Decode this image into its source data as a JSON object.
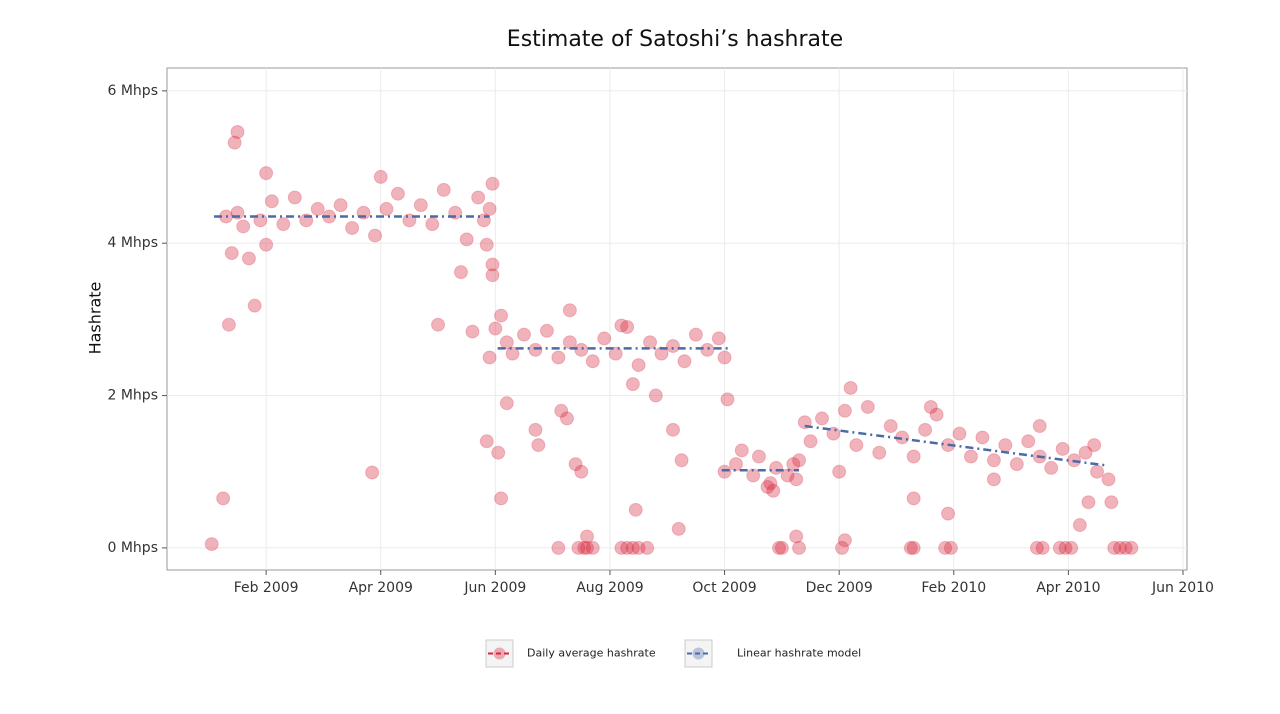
{
  "chart_data": {
    "type": "scatter",
    "title": "Estimate of Satoshi’s hashrate",
    "y_label": "Hashrate",
    "grid": true,
    "xlim": [
      -0.73,
      17.07
    ],
    "ylim": [
      -0.29,
      6.3
    ],
    "xticks": [
      {
        "value": 1,
        "label": "Feb 2009"
      },
      {
        "value": 3,
        "label": "Apr 2009"
      },
      {
        "value": 5,
        "label": "Jun 2009"
      },
      {
        "value": 7,
        "label": "Aug 2009"
      },
      {
        "value": 9,
        "label": "Oct 2009"
      },
      {
        "value": 11,
        "label": "Dec 2009"
      },
      {
        "value": 13,
        "label": "Feb 2010"
      },
      {
        "value": 15,
        "label": "Apr 2010"
      },
      {
        "value": 17,
        "label": "Jun 2010"
      }
    ],
    "yticks": [
      {
        "value": 0,
        "label": "0 Mhps"
      },
      {
        "value": 2,
        "label": "2 Mhps"
      },
      {
        "value": 4,
        "label": "4 Mhps"
      },
      {
        "value": 6,
        "label": "6 Mhps"
      }
    ],
    "series": [
      {
        "name": "Daily average hashrate",
        "type": "scatter",
        "color": "#d7263d",
        "x": [
          0.3,
          0.5,
          0.6,
          0.9,
          1.0,
          1.1,
          1.3,
          1.5,
          1.7,
          1.9,
          2.1,
          2.3,
          2.5,
          2.7,
          2.9,
          3.1,
          3.3,
          3.5,
          3.7,
          3.9,
          4.1,
          4.3,
          4.5,
          4.7,
          4.9,
          1.0,
          3.0,
          4.8,
          4.95,
          4.85,
          4.95,
          0.05,
          0.25,
          0.35,
          0.4,
          0.45,
          0.5,
          0.7,
          0.8,
          2.85,
          4.0,
          4.4,
          4.6,
          4.9,
          5.1,
          5.2,
          5.3,
          5.5,
          5.7,
          5.9,
          6.1,
          6.3,
          6.5,
          6.7,
          6.9,
          7.1,
          7.3,
          7.5,
          7.7,
          7.9,
          8.1,
          8.3,
          8.5,
          8.7,
          8.9,
          9.0,
          5.0,
          5.05,
          5.1,
          5.2,
          5.7,
          5.75,
          6.15,
          6.25,
          6.4,
          6.5,
          6.6,
          7.45,
          7.4,
          7.8,
          8.1,
          8.25,
          8.2,
          9.05,
          4.85,
          4.95,
          6.3,
          7.2,
          6.1,
          6.45,
          6.55,
          6.6,
          6.7,
          7.2,
          7.3,
          7.4,
          7.5,
          7.65,
          9.0,
          9.2,
          9.3,
          9.5,
          9.6,
          9.8,
          9.9,
          10.1,
          10.2,
          10.25,
          9.75,
          9.85,
          9.95,
          10.0,
          10.25,
          10.3,
          10.4,
          10.5,
          10.7,
          10.9,
          11.1,
          11.3,
          11.5,
          11.7,
          11.9,
          12.1,
          12.3,
          12.5,
          12.7,
          12.9,
          13.1,
          13.3,
          13.5,
          13.7,
          13.9,
          14.1,
          14.3,
          14.5,
          14.7,
          14.9,
          15.1,
          15.3,
          15.5,
          15.7,
          11.2,
          11.0,
          10.3,
          12.6,
          13.7,
          14.5,
          15.35,
          15.2,
          15.45,
          15.75,
          12.9,
          12.3,
          11.05,
          11.1,
          12.25,
          12.3,
          12.85,
          12.95,
          14.45,
          14.55,
          14.85,
          14.95,
          15.05,
          15.8,
          15.9,
          16.0,
          16.1
        ],
        "values": [
          4.35,
          4.4,
          4.22,
          4.3,
          3.98,
          4.55,
          4.25,
          4.6,
          4.3,
          4.45,
          4.35,
          4.5,
          4.2,
          4.4,
          4.1,
          4.45,
          4.65,
          4.3,
          4.5,
          4.25,
          4.7,
          4.4,
          4.05,
          4.6,
          4.45,
          4.92,
          4.87,
          4.3,
          4.78,
          3.98,
          3.58,
          0.05,
          0.65,
          2.93,
          3.87,
          5.32,
          5.46,
          3.8,
          3.18,
          0.99,
          2.93,
          3.62,
          2.84,
          2.5,
          3.05,
          2.7,
          2.55,
          2.8,
          2.6,
          2.85,
          2.5,
          2.7,
          2.6,
          2.45,
          2.75,
          2.55,
          2.9,
          2.4,
          2.7,
          2.55,
          2.65,
          2.45,
          2.8,
          2.6,
          2.75,
          2.5,
          2.88,
          1.25,
          0.65,
          1.9,
          1.55,
          1.35,
          1.8,
          1.7,
          1.1,
          1.0,
          0.15,
          0.5,
          2.15,
          2.0,
          1.55,
          1.15,
          0.25,
          1.95,
          1.4,
          3.72,
          3.12,
          2.92,
          0,
          0,
          0,
          0,
          0,
          0,
          0,
          0,
          0,
          0,
          1.0,
          1.1,
          1.28,
          0.95,
          1.2,
          0.85,
          1.05,
          0.95,
          1.1,
          0.9,
          0.8,
          0.75,
          0,
          0,
          0.15,
          0,
          1.65,
          1.4,
          1.7,
          1.5,
          1.8,
          1.35,
          1.85,
          1.25,
          1.6,
          1.45,
          1.2,
          1.55,
          1.75,
          1.35,
          1.5,
          1.2,
          1.45,
          1.15,
          1.35,
          1.1,
          1.4,
          1.2,
          1.05,
          1.3,
          1.15,
          1.25,
          1.0,
          0.9,
          2.1,
          1.0,
          1.15,
          1.85,
          0.9,
          1.6,
          0.6,
          0.3,
          1.35,
          0.6,
          0.45,
          0.65,
          0,
          0.1,
          0,
          0,
          0,
          0,
          0,
          0,
          0,
          0,
          0,
          0,
          0,
          0,
          0
        ]
      },
      {
        "name": "Linear hashrate model",
        "type": "line",
        "color": "#4a6aa8",
        "x": [
          0.09,
          4.9,
          4.97,
          5.04,
          9.06,
          9.0,
          8.95,
          10.3,
          10.35,
          10.4,
          15.69
        ],
        "values": [
          4.35,
          4.35,
          null,
          2.62,
          2.62,
          null,
          1.02,
          1.02,
          null,
          1.6,
          1.08
        ]
      }
    ]
  }
}
